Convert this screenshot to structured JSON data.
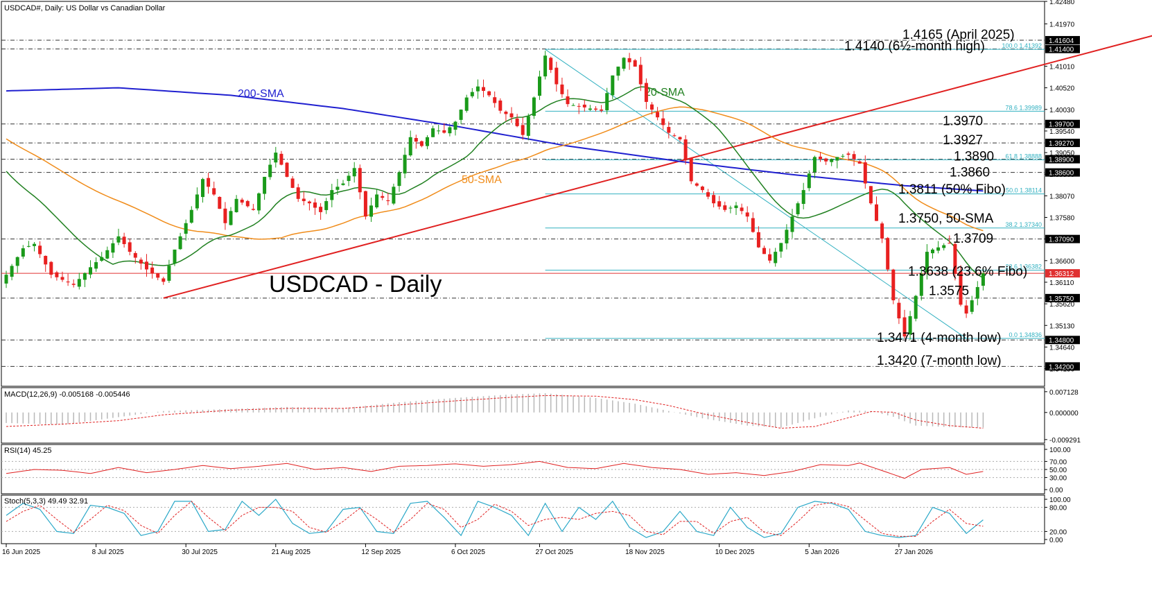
{
  "chart_data": {
    "type": "candlestick",
    "header": "USDCAD#, Daily:  US Dollar vs Canadian Dollar",
    "watermark_title": "USDCAD - Daily",
    "price_axis": {
      "ylim": [
        1.3375,
        1.4248
      ],
      "ticks": [
        "1.42480",
        "1.41970",
        "1.41010",
        "1.40520",
        "1.40030",
        "1.39540",
        "1.39050",
        "1.38560",
        "1.38070",
        "1.37580",
        "1.37090",
        "1.36600",
        "1.36110",
        "1.35620",
        "1.35130",
        "1.34640",
        "1.34150"
      ]
    },
    "x_axis": {
      "date_labels": [
        {
          "label": "16 Jun 2025",
          "bar": 0
        },
        {
          "label": "8 Jul 2025",
          "bar": 16
        },
        {
          "label": "30 Jul 2025",
          "bar": 32
        },
        {
          "label": "21 Aug 2025",
          "bar": 48
        },
        {
          "label": "12 Sep 2025",
          "bar": 64
        },
        {
          "label": "6 Oct 2025",
          "bar": 80
        },
        {
          "label": "27 Oct 2025",
          "bar": 95
        },
        {
          "label": "18 Nov 2025",
          "bar": 111
        },
        {
          "label": "10 Dec 2025",
          "bar": 127
        },
        {
          "label": "5 Jan 2026",
          "bar": 143
        },
        {
          "label": "27 Jan 2026",
          "bar": 159
        }
      ]
    },
    "highlighted_levels": [
      {
        "value": 1.416,
        "tag": "1.41604",
        "line": "dashdot"
      },
      {
        "value": 1.414,
        "tag": "1.41400",
        "line": "dashdot"
      },
      {
        "value": 1.397,
        "tag": "1.39700",
        "line": "dashdot"
      },
      {
        "value": 1.3927,
        "tag": "1.39270",
        "line": "dashdot"
      },
      {
        "value": 1.389,
        "tag": "1.38900",
        "line": "dashdot"
      },
      {
        "value": 1.386,
        "tag": "1.38600",
        "line": "dashdot"
      },
      {
        "value": 1.3709,
        "tag": "1.37090",
        "line": "dashdot"
      },
      {
        "value": 1.3575,
        "tag": "1.35750",
        "line": "dashdot"
      },
      {
        "value": 1.348,
        "tag": "1.34800",
        "line": "dashdot"
      },
      {
        "value": 1.342,
        "tag": "1.34200",
        "line": "dashdot"
      }
    ],
    "current_price": {
      "value": 1.36312,
      "tag": "1.36312",
      "color": "#e03030"
    },
    "annotations": [
      {
        "text": "1.4165 (April 2025)",
        "y": 1.4174
      },
      {
        "text": "1.4140 (6½-month high)",
        "y": 1.4148
      },
      {
        "text": "1.3970",
        "y": 1.3978
      },
      {
        "text": "1.3927",
        "y": 1.3935
      },
      {
        "text": "1.3890",
        "y": 1.3898
      },
      {
        "text": "1.3860",
        "y": 1.3862
      },
      {
        "text": "1.3811 (50% Fibo)",
        "y": 1.3823
      },
      {
        "text": "1.3750, 50-SMA",
        "y": 1.3757
      },
      {
        "text": "1.3709",
        "y": 1.3712
      },
      {
        "text": "1.3638 (23.6% Fibo)",
        "y": 1.3637
      },
      {
        "text": "1.3575",
        "y": 1.3593
      },
      {
        "text": "1.3471 (4-month low)",
        "y": 1.3487
      },
      {
        "text": "1.3420 (7-month low)",
        "y": 1.3435
      }
    ],
    "fibonacci": {
      "from": {
        "bar": 96,
        "value": 1.41392
      },
      "to": {
        "bar": 171,
        "value": 1.34836
      },
      "levels": [
        {
          "label": "100.0 1.41392",
          "value": 1.41392
        },
        {
          "label": "78.6 1.39989",
          "value": 1.39989
        },
        {
          "label": "61.8 1.38888",
          "value": 1.38888
        },
        {
          "label": "50.0 1.38114",
          "value": 1.38114
        },
        {
          "label": "38.2 1.37340",
          "value": 1.3734
        },
        {
          "label": "23.6 1.36382",
          "value": 1.36382
        },
        {
          "label": "0.0 1.34836",
          "value": 1.34836
        }
      ]
    },
    "trendline": {
      "from": {
        "bar": 28,
        "value": 1.3575
      },
      "to": {
        "bar": 213,
        "value": 1.42
      }
    },
    "ma_labels": {
      "sma200": "200-SMA",
      "sma20": "20-SMA",
      "sma50": "50-SMA"
    },
    "colors": {
      "up": "#1a9a1a",
      "down": "#e82020",
      "sma20": "#208020",
      "sma50": "#f08c1a",
      "sma200": "#2020d0",
      "trend": "#e02020",
      "fib": "#30b0c0",
      "level": "#303030"
    },
    "ohlc_keypoints": [
      [
        0,
        1.3628
      ],
      [
        3,
        1.3688
      ],
      [
        5,
        1.3698
      ],
      [
        8,
        1.3628
      ],
      [
        12,
        1.3605
      ],
      [
        15,
        1.3645
      ],
      [
        17,
        1.3668
      ],
      [
        20,
        1.3715
      ],
      [
        22,
        1.368
      ],
      [
        25,
        1.364
      ],
      [
        28,
        1.3612
      ],
      [
        30,
        1.3685
      ],
      [
        33,
        1.3775
      ],
      [
        35,
        1.3845
      ],
      [
        37,
        1.381
      ],
      [
        39,
        1.3745
      ],
      [
        41,
        1.38
      ],
      [
        44,
        1.3775
      ],
      [
        46,
        1.385
      ],
      [
        48,
        1.3905
      ],
      [
        50,
        1.385
      ],
      [
        52,
        1.38
      ],
      [
        54,
        1.379
      ],
      [
        56,
        1.377
      ],
      [
        58,
        1.382
      ],
      [
        60,
        1.3835
      ],
      [
        62,
        1.387
      ],
      [
        64,
        1.376
      ],
      [
        66,
        1.381
      ],
      [
        68,
        1.3795
      ],
      [
        70,
        1.386
      ],
      [
        72,
        1.394
      ],
      [
        74,
        1.392
      ],
      [
        76,
        1.396
      ],
      [
        78,
        1.395
      ],
      [
        80,
        1.3975
      ],
      [
        82,
        1.403
      ],
      [
        84,
        1.4055
      ],
      [
        86,
        1.4035
      ],
      [
        88,
        1.4
      ],
      [
        90,
        1.3985
      ],
      [
        92,
        1.3945
      ],
      [
        94,
        1.403
      ],
      [
        96,
        1.4125
      ],
      [
        98,
        1.406
      ],
      [
        100,
        1.4015
      ],
      [
        102,
        1.401
      ],
      [
        104,
        1.4005
      ],
      [
        106,
        1.4
      ],
      [
        108,
        1.408
      ],
      [
        110,
        1.412
      ],
      [
        112,
        1.41
      ],
      [
        114,
        1.402
      ],
      [
        116,
        1.3985
      ],
      [
        118,
        1.395
      ],
      [
        120,
        1.3935
      ],
      [
        122,
        1.384
      ],
      [
        124,
        1.382
      ],
      [
        126,
        1.379
      ],
      [
        128,
        1.3775
      ],
      [
        130,
        1.3785
      ],
      [
        132,
        1.376
      ],
      [
        134,
        1.369
      ],
      [
        136,
        1.366
      ],
      [
        138,
        1.37
      ],
      [
        140,
        1.376
      ],
      [
        142,
        1.382
      ],
      [
        144,
        1.3895
      ],
      [
        146,
        1.3885
      ],
      [
        148,
        1.3895
      ],
      [
        150,
        1.39
      ],
      [
        152,
        1.388
      ],
      [
        154,
        1.379
      ],
      [
        156,
        1.371
      ],
      [
        158,
        1.357
      ],
      [
        160,
        1.3488
      ],
      [
        162,
        1.358
      ],
      [
        164,
        1.368
      ],
      [
        166,
        1.369
      ],
      [
        168,
        1.37
      ],
      [
        170,
        1.356
      ],
      [
        171,
        1.354
      ],
      [
        172,
        1.357
      ],
      [
        173,
        1.36
      ],
      [
        174,
        1.3631
      ]
    ]
  },
  "macd": {
    "label": "MACD(12,26,9) -0.005168 -0.005446",
    "ticks": [
      "0.007128",
      "0.000000",
      "-0.009291"
    ],
    "ylim": [
      -0.0098,
      0.0078
    ],
    "histogram_keypoints": [
      [
        0,
        -0.0036
      ],
      [
        10,
        -0.0042
      ],
      [
        20,
        -0.0016
      ],
      [
        28,
        0.0005
      ],
      [
        40,
        0.0012
      ],
      [
        50,
        0.0019
      ],
      [
        60,
        0.0015
      ],
      [
        70,
        0.0035
      ],
      [
        80,
        0.005
      ],
      [
        90,
        0.0062
      ],
      [
        96,
        0.0066
      ],
      [
        105,
        0.005
      ],
      [
        112,
        0.003
      ],
      [
        118,
        0.0005
      ],
      [
        124,
        -0.002
      ],
      [
        132,
        -0.0045
      ],
      [
        138,
        -0.0052
      ],
      [
        144,
        -0.002
      ],
      [
        150,
        0.0007
      ],
      [
        154,
        0.0005
      ],
      [
        158,
        -0.0015
      ],
      [
        162,
        -0.0045
      ],
      [
        168,
        -0.005
      ],
      [
        174,
        -0.0052
      ]
    ],
    "signal_keypoints": [
      [
        0,
        -0.0048
      ],
      [
        10,
        -0.004
      ],
      [
        20,
        -0.0028
      ],
      [
        28,
        -0.0008
      ],
      [
        40,
        0.0008
      ],
      [
        50,
        0.0014
      ],
      [
        60,
        0.0014
      ],
      [
        70,
        0.0026
      ],
      [
        80,
        0.004
      ],
      [
        90,
        0.0052
      ],
      [
        96,
        0.0058
      ],
      [
        105,
        0.0056
      ],
      [
        112,
        0.0044
      ],
      [
        118,
        0.0024
      ],
      [
        124,
        -0.0004
      ],
      [
        132,
        -0.0034
      ],
      [
        138,
        -0.0054
      ],
      [
        144,
        -0.0048
      ],
      [
        150,
        -0.0018
      ],
      [
        154,
        0.0003
      ],
      [
        158,
        0.0001
      ],
      [
        162,
        -0.0026
      ],
      [
        168,
        -0.0045
      ],
      [
        174,
        -0.0054
      ]
    ]
  },
  "rsi": {
    "label": "RSI(14) 45.25",
    "ticks": [
      "100.00",
      "70.00",
      "50.00",
      "30.00",
      "0.00"
    ],
    "ylim": [
      0,
      100
    ],
    "keypoints": [
      [
        0,
        40
      ],
      [
        5,
        50
      ],
      [
        10,
        48
      ],
      [
        15,
        40
      ],
      [
        20,
        55
      ],
      [
        25,
        42
      ],
      [
        30,
        50
      ],
      [
        35,
        60
      ],
      [
        40,
        52
      ],
      [
        45,
        58
      ],
      [
        50,
        65
      ],
      [
        55,
        50
      ],
      [
        60,
        55
      ],
      [
        65,
        45
      ],
      [
        70,
        58
      ],
      [
        75,
        60
      ],
      [
        80,
        64
      ],
      [
        85,
        58
      ],
      [
        90,
        62
      ],
      [
        95,
        70
      ],
      [
        100,
        55
      ],
      [
        105,
        52
      ],
      [
        110,
        65
      ],
      [
        115,
        55
      ],
      [
        120,
        50
      ],
      [
        125,
        38
      ],
      [
        130,
        42
      ],
      [
        135,
        35
      ],
      [
        140,
        45
      ],
      [
        145,
        62
      ],
      [
        150,
        60
      ],
      [
        152,
        66
      ],
      [
        155,
        52
      ],
      [
        160,
        28
      ],
      [
        163,
        50
      ],
      [
        168,
        55
      ],
      [
        171,
        38
      ],
      [
        174,
        45
      ]
    ]
  },
  "stoch": {
    "label": "Stoch(5,3,3) 49.49 32.91",
    "ticks": [
      "100.00",
      "80.00",
      "20.00",
      "0.00"
    ],
    "ylim": [
      0,
      100
    ],
    "k_keypoints": [
      [
        0,
        60
      ],
      [
        3,
        90
      ],
      [
        6,
        75
      ],
      [
        9,
        20
      ],
      [
        12,
        15
      ],
      [
        15,
        85
      ],
      [
        18,
        80
      ],
      [
        21,
        65
      ],
      [
        24,
        10
      ],
      [
        27,
        20
      ],
      [
        30,
        95
      ],
      [
        33,
        95
      ],
      [
        36,
        20
      ],
      [
        39,
        25
      ],
      [
        42,
        95
      ],
      [
        45,
        60
      ],
      [
        48,
        100
      ],
      [
        51,
        40
      ],
      [
        54,
        15
      ],
      [
        57,
        20
      ],
      [
        60,
        75
      ],
      [
        63,
        80
      ],
      [
        66,
        20
      ],
      [
        69,
        15
      ],
      [
        72,
        90
      ],
      [
        75,
        95
      ],
      [
        78,
        55
      ],
      [
        81,
        10
      ],
      [
        84,
        95
      ],
      [
        87,
        80
      ],
      [
        90,
        60
      ],
      [
        93,
        10
      ],
      [
        96,
        90
      ],
      [
        99,
        20
      ],
      [
        102,
        80
      ],
      [
        105,
        50
      ],
      [
        108,
        95
      ],
      [
        111,
        30
      ],
      [
        114,
        5
      ],
      [
        117,
        20
      ],
      [
        120,
        70
      ],
      [
        123,
        20
      ],
      [
        126,
        10
      ],
      [
        129,
        80
      ],
      [
        132,
        30
      ],
      [
        135,
        5
      ],
      [
        138,
        15
      ],
      [
        141,
        80
      ],
      [
        144,
        95
      ],
      [
        147,
        90
      ],
      [
        150,
        75
      ],
      [
        153,
        20
      ],
      [
        156,
        10
      ],
      [
        159,
        5
      ],
      [
        162,
        10
      ],
      [
        165,
        80
      ],
      [
        168,
        65
      ],
      [
        171,
        15
      ],
      [
        174,
        49
      ]
    ],
    "d_keypoints": [
      [
        0,
        45
      ],
      [
        3,
        70
      ],
      [
        6,
        85
      ],
      [
        9,
        50
      ],
      [
        12,
        18
      ],
      [
        15,
        50
      ],
      [
        18,
        85
      ],
      [
        21,
        72
      ],
      [
        24,
        35
      ],
      [
        27,
        15
      ],
      [
        30,
        60
      ],
      [
        33,
        95
      ],
      [
        36,
        55
      ],
      [
        39,
        22
      ],
      [
        42,
        60
      ],
      [
        45,
        80
      ],
      [
        48,
        80
      ],
      [
        51,
        70
      ],
      [
        54,
        30
      ],
      [
        57,
        18
      ],
      [
        60,
        45
      ],
      [
        63,
        78
      ],
      [
        66,
        50
      ],
      [
        69,
        18
      ],
      [
        72,
        50
      ],
      [
        75,
        90
      ],
      [
        78,
        75
      ],
      [
        81,
        30
      ],
      [
        84,
        50
      ],
      [
        87,
        88
      ],
      [
        90,
        70
      ],
      [
        93,
        35
      ],
      [
        96,
        50
      ],
      [
        99,
        55
      ],
      [
        102,
        50
      ],
      [
        105,
        65
      ],
      [
        108,
        70
      ],
      [
        111,
        60
      ],
      [
        114,
        20
      ],
      [
        117,
        12
      ],
      [
        120,
        45
      ],
      [
        123,
        45
      ],
      [
        126,
        15
      ],
      [
        129,
        45
      ],
      [
        132,
        55
      ],
      [
        135,
        18
      ],
      [
        138,
        10
      ],
      [
        141,
        45
      ],
      [
        144,
        85
      ],
      [
        147,
        92
      ],
      [
        150,
        82
      ],
      [
        153,
        48
      ],
      [
        156,
        15
      ],
      [
        159,
        8
      ],
      [
        162,
        8
      ],
      [
        165,
        45
      ],
      [
        168,
        75
      ],
      [
        171,
        40
      ],
      [
        174,
        33
      ]
    ]
  }
}
